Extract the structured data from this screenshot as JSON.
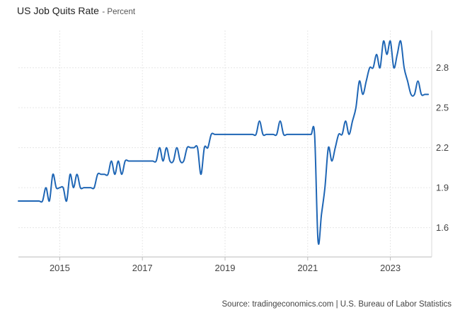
{
  "header": {
    "title": "US Job Quits Rate",
    "subtitle": "- Percent"
  },
  "footer": {
    "source": "Source: tradingeconomics.com | U.S. Bureau of Labor Statistics"
  },
  "chart_data": {
    "type": "line",
    "title": "US Job Quits Rate",
    "subtitle": "Percent",
    "xlabel": "",
    "ylabel": "",
    "x_ticks": [
      "2015",
      "2017",
      "2019",
      "2021",
      "2023"
    ],
    "y_ticks": [
      1.6,
      1.9,
      2.2,
      2.5,
      2.8
    ],
    "xlim": [
      "2014-01",
      "2024-01"
    ],
    "ylim": [
      1.38,
      3.08
    ],
    "grid": true,
    "y_axis_side": "right",
    "series": [
      {
        "name": "",
        "color": "#1f66b5",
        "points": [
          [
            "2014-01",
            1.8
          ],
          [
            "2014-02",
            1.8
          ],
          [
            "2014-03",
            1.8
          ],
          [
            "2014-04",
            1.8
          ],
          [
            "2014-05",
            1.8
          ],
          [
            "2014-06",
            1.8
          ],
          [
            "2014-07",
            1.8
          ],
          [
            "2014-08",
            1.8
          ],
          [
            "2014-09",
            1.9
          ],
          [
            "2014-10",
            1.8
          ],
          [
            "2014-11",
            2.0
          ],
          [
            "2014-12",
            1.9
          ],
          [
            "2015-01",
            1.9
          ],
          [
            "2015-02",
            1.9
          ],
          [
            "2015-03",
            1.8
          ],
          [
            "2015-04",
            2.0
          ],
          [
            "2015-05",
            1.9
          ],
          [
            "2015-06",
            2.0
          ],
          [
            "2015-07",
            1.9
          ],
          [
            "2015-08",
            1.9
          ],
          [
            "2015-09",
            1.9
          ],
          [
            "2015-10",
            1.9
          ],
          [
            "2015-11",
            1.9
          ],
          [
            "2015-12",
            2.0
          ],
          [
            "2016-01",
            2.0
          ],
          [
            "2016-02",
            2.0
          ],
          [
            "2016-03",
            2.0
          ],
          [
            "2016-04",
            2.1
          ],
          [
            "2016-05",
            2.0
          ],
          [
            "2016-06",
            2.1
          ],
          [
            "2016-07",
            2.0
          ],
          [
            "2016-08",
            2.1
          ],
          [
            "2016-09",
            2.1
          ],
          [
            "2016-10",
            2.1
          ],
          [
            "2016-11",
            2.1
          ],
          [
            "2016-12",
            2.1
          ],
          [
            "2017-01",
            2.1
          ],
          [
            "2017-02",
            2.1
          ],
          [
            "2017-03",
            2.1
          ],
          [
            "2017-04",
            2.1
          ],
          [
            "2017-05",
            2.1
          ],
          [
            "2017-06",
            2.2
          ],
          [
            "2017-07",
            2.1
          ],
          [
            "2017-08",
            2.2
          ],
          [
            "2017-09",
            2.1
          ],
          [
            "2017-10",
            2.1
          ],
          [
            "2017-11",
            2.2
          ],
          [
            "2017-12",
            2.1
          ],
          [
            "2018-01",
            2.1
          ],
          [
            "2018-02",
            2.2
          ],
          [
            "2018-03",
            2.2
          ],
          [
            "2018-04",
            2.2
          ],
          [
            "2018-05",
            2.2
          ],
          [
            "2018-06",
            2.0
          ],
          [
            "2018-07",
            2.2
          ],
          [
            "2018-08",
            2.2
          ],
          [
            "2018-09",
            2.3
          ],
          [
            "2018-10",
            2.3
          ],
          [
            "2018-11",
            2.3
          ],
          [
            "2018-12",
            2.3
          ],
          [
            "2019-01",
            2.3
          ],
          [
            "2019-02",
            2.3
          ],
          [
            "2019-03",
            2.3
          ],
          [
            "2019-04",
            2.3
          ],
          [
            "2019-05",
            2.3
          ],
          [
            "2019-06",
            2.3
          ],
          [
            "2019-07",
            2.3
          ],
          [
            "2019-08",
            2.3
          ],
          [
            "2019-09",
            2.3
          ],
          [
            "2019-10",
            2.3
          ],
          [
            "2019-11",
            2.4
          ],
          [
            "2019-12",
            2.3
          ],
          [
            "2020-01",
            2.3
          ],
          [
            "2020-02",
            2.3
          ],
          [
            "2020-03",
            2.3
          ],
          [
            "2020-04",
            2.3
          ],
          [
            "2020-05",
            2.4
          ],
          [
            "2020-06",
            2.3
          ],
          [
            "2020-07",
            2.3
          ],
          [
            "2020-08",
            2.3
          ],
          [
            "2020-09",
            2.3
          ],
          [
            "2020-10",
            2.3
          ],
          [
            "2020-11",
            2.3
          ],
          [
            "2020-12",
            2.3
          ],
          [
            "2021-01",
            2.3
          ],
          [
            "2021-02",
            2.3
          ],
          [
            "2021-03",
            2.3
          ],
          [
            "2021-04",
            1.5
          ],
          [
            "2021-05",
            1.7
          ],
          [
            "2021-06",
            1.9
          ],
          [
            "2021-07",
            2.2
          ],
          [
            "2021-08",
            2.1
          ],
          [
            "2021-09",
            2.2
          ],
          [
            "2021-10",
            2.3
          ],
          [
            "2021-11",
            2.3
          ],
          [
            "2021-12",
            2.4
          ],
          [
            "2022-01",
            2.3
          ],
          [
            "2022-02",
            2.4
          ],
          [
            "2022-03",
            2.5
          ],
          [
            "2022-04",
            2.7
          ],
          [
            "2022-05",
            2.6
          ],
          [
            "2022-06",
            2.7
          ],
          [
            "2022-07",
            2.8
          ],
          [
            "2022-08",
            2.8
          ],
          [
            "2022-09",
            2.9
          ],
          [
            "2022-10",
            2.8
          ],
          [
            "2022-11",
            3.0
          ],
          [
            "2022-12",
            2.9
          ],
          [
            "2023-01",
            3.0
          ],
          [
            "2023-02",
            2.8
          ],
          [
            "2023-03",
            2.9
          ],
          [
            "2023-04",
            3.0
          ],
          [
            "2023-05",
            2.8
          ],
          [
            "2023-06",
            2.7
          ],
          [
            "2023-07",
            2.6
          ],
          [
            "2023-08",
            2.6
          ],
          [
            "2023-09",
            2.7
          ],
          [
            "2023-10",
            2.6
          ],
          [
            "2023-11",
            2.6
          ],
          [
            "2023-12",
            2.6
          ]
        ]
      }
    ]
  }
}
